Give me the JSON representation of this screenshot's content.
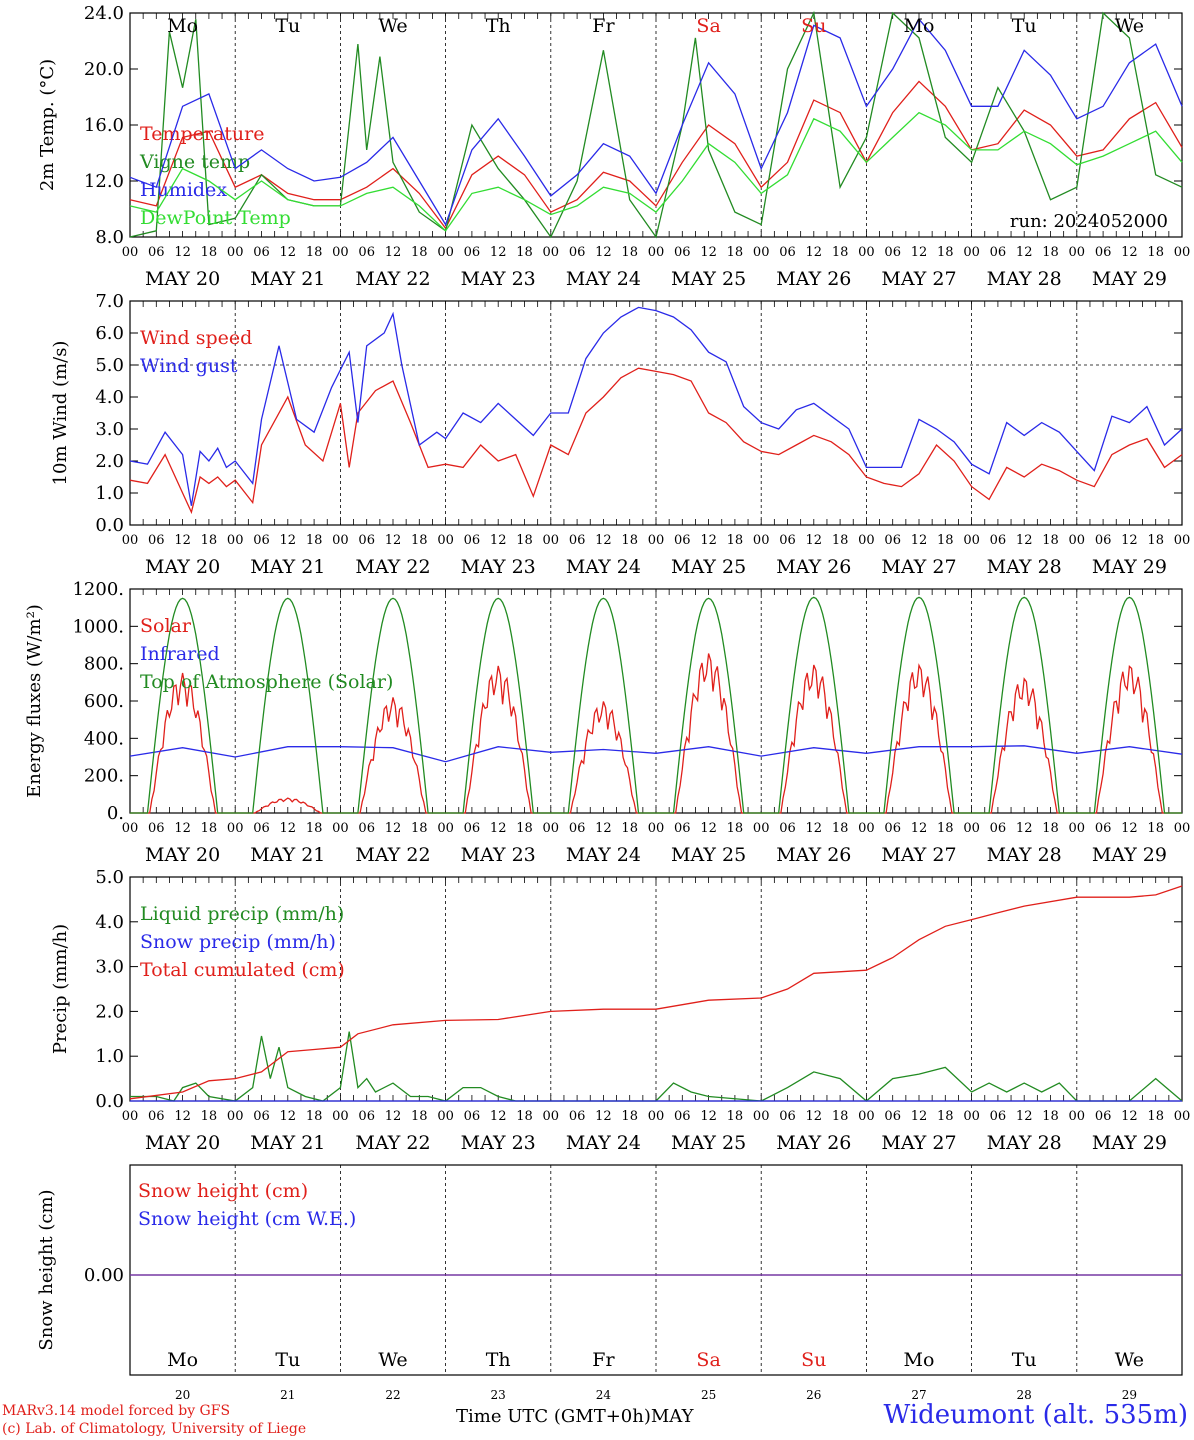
{
  "footer": {
    "model_line": "MARv3.14 model forced by GFS",
    "lab_line": "(c) Lab. of Climatology, University of Liege",
    "time_axis": "Time UTC (GMT+0h)MAY",
    "station": "Wideumont (alt. 535m)"
  },
  "hour_ticks": [
    "00",
    "06",
    "12",
    "18"
  ],
  "final_tick": "00",
  "date_labels": [
    "MAY 20",
    "MAY 21",
    "MAY 22",
    "MAY 23",
    "MAY 24",
    "MAY 25",
    "MAY 26",
    "MAY 27",
    "MAY 28",
    "MAY 29"
  ],
  "weekdays": [
    {
      "label": "Mo",
      "color": "#000000"
    },
    {
      "label": "Tu",
      "color": "#000000"
    },
    {
      "label": "We",
      "color": "#000000"
    },
    {
      "label": "Th",
      "color": "#000000"
    },
    {
      "label": "Fr",
      "color": "#000000"
    },
    {
      "label": "Sa",
      "color": "#e0201b"
    },
    {
      "label": "Su",
      "color": "#e0201b"
    },
    {
      "label": "Mo",
      "color": "#000000"
    },
    {
      "label": "Tu",
      "color": "#000000"
    },
    {
      "label": "We",
      "color": "#000000"
    }
  ],
  "day_numbers": [
    "20",
    "21",
    "22",
    "23",
    "24",
    "25",
    "26",
    "27",
    "28",
    "29"
  ],
  "colors": {
    "red": "#e0201b",
    "green": "#228b22",
    "blue": "#2a2ae8",
    "light_green": "#33dd33",
    "purple": "#7030a0"
  },
  "chart_data": [
    {
      "type": "line",
      "ylabel": "2m Temp. (°C)",
      "ylim": [
        8,
        26
      ],
      "yticks": [
        "8.0",
        "12.0",
        "16.0",
        "20.0",
        "24.0"
      ],
      "annotation": "run: 2024052000",
      "x_unit": "hours since 2024-05-20 00 UTC",
      "series": [
        {
          "name": "Temperature",
          "color": "#e0201b",
          "x": [
            0,
            6,
            12,
            18,
            24,
            30,
            36,
            42,
            48,
            54,
            60,
            66,
            72,
            78,
            84,
            90,
            96,
            102,
            108,
            114,
            120,
            126,
            132,
            138,
            144,
            150,
            156,
            162,
            168,
            174,
            180,
            186,
            192,
            198,
            204,
            210,
            216,
            222,
            228,
            234,
            240
          ],
          "y": [
            11.0,
            10.5,
            16.0,
            16.5,
            12.0,
            13.0,
            11.5,
            11.0,
            11.0,
            12.0,
            13.5,
            11.5,
            8.7,
            13.0,
            14.5,
            13.0,
            10.0,
            11.0,
            13.2,
            12.5,
            10.5,
            14.0,
            17.0,
            15.5,
            12.0,
            14.0,
            19.0,
            18.0,
            14.0,
            18.0,
            20.5,
            18.5,
            15.0,
            15.5,
            18.2,
            17.0,
            14.5,
            15.0,
            17.5,
            18.8,
            15.2
          ]
        },
        {
          "name": "Vigne temp",
          "color": "#228b22",
          "x": [
            0,
            6,
            9,
            12,
            15,
            18,
            24,
            30,
            36,
            42,
            48,
            52,
            54,
            57,
            60,
            66,
            72,
            78,
            84,
            90,
            96,
            102,
            108,
            114,
            120,
            126,
            129,
            132,
            138,
            144,
            150,
            156,
            162,
            168,
            174,
            180,
            186,
            192,
            198,
            204,
            210,
            216,
            222,
            228,
            234,
            240
          ],
          "y": [
            8.0,
            8.5,
            24.5,
            20.0,
            25.5,
            9.0,
            9.5,
            13.0,
            11.0,
            10.5,
            10.5,
            23.5,
            15.0,
            22.5,
            14.0,
            10.0,
            8.5,
            17.0,
            13.5,
            11.0,
            8.0,
            12.5,
            23.0,
            11.0,
            8.0,
            17.0,
            24.0,
            15.0,
            10.0,
            9.0,
            21.5,
            26.0,
            12.0,
            16.0,
            26.0,
            24.0,
            16.0,
            14.0,
            20.0,
            16.5,
            11.0,
            12.0,
            26.0,
            24.0,
            13.0,
            12.0
          ]
        },
        {
          "name": "Humidex",
          "color": "#2a2ae8",
          "x": [
            0,
            6,
            12,
            18,
            24,
            30,
            36,
            42,
            48,
            54,
            60,
            66,
            72,
            78,
            84,
            90,
            96,
            102,
            108,
            114,
            120,
            126,
            132,
            138,
            144,
            150,
            156,
            162,
            168,
            174,
            180,
            186,
            192,
            198,
            204,
            210,
            216,
            222,
            228,
            234,
            240
          ],
          "y": [
            12.8,
            12.0,
            18.5,
            19.5,
            13.5,
            15.0,
            13.5,
            12.5,
            12.8,
            14.0,
            16.0,
            12.5,
            9.0,
            15.0,
            17.5,
            14.5,
            11.3,
            13.0,
            15.5,
            14.5,
            11.5,
            17.0,
            22.0,
            19.5,
            13.5,
            18.0,
            25.0,
            24.0,
            18.5,
            21.5,
            25.5,
            23.0,
            18.5,
            18.5,
            23.0,
            21.0,
            17.5,
            18.5,
            22.0,
            23.5,
            18.5
          ]
        },
        {
          "name": "DewPoint Temp",
          "color": "#33dd33",
          "x": [
            0,
            6,
            12,
            18,
            24,
            30,
            36,
            42,
            48,
            54,
            60,
            66,
            72,
            78,
            84,
            90,
            96,
            102,
            108,
            114,
            120,
            126,
            132,
            138,
            144,
            150,
            156,
            162,
            168,
            174,
            180,
            186,
            192,
            198,
            204,
            210,
            216,
            222,
            228,
            234,
            240
          ],
          "y": [
            10.5,
            10.0,
            13.5,
            12.5,
            11.0,
            12.5,
            11.0,
            10.5,
            10.5,
            11.5,
            12.0,
            10.5,
            8.5,
            11.5,
            12.0,
            11.0,
            9.8,
            10.5,
            12.0,
            11.5,
            10.0,
            12.5,
            15.5,
            14.0,
            11.5,
            13.0,
            17.5,
            16.5,
            14.0,
            16.0,
            18.0,
            17.0,
            15.0,
            15.0,
            16.5,
            15.5,
            13.8,
            14.5,
            15.5,
            16.5,
            14.0
          ]
        }
      ]
    },
    {
      "type": "line",
      "ylabel": "10m Wind (m/s)",
      "ylim": [
        0,
        7
      ],
      "yticks": [
        "0.0",
        "1.0",
        "2.0",
        "3.0",
        "4.0",
        "5.0",
        "6.0",
        "7.0"
      ],
      "reference_line": 5.0,
      "series": [
        {
          "name": "Wind speed",
          "color": "#e0201b",
          "x": [
            0,
            4,
            8,
            12,
            14,
            16,
            18,
            20,
            22,
            24,
            28,
            30,
            36,
            40,
            44,
            48,
            50,
            52,
            56,
            60,
            64,
            68,
            72,
            76,
            80,
            84,
            88,
            92,
            96,
            100,
            104,
            108,
            112,
            116,
            120,
            124,
            128,
            132,
            136,
            140,
            144,
            148,
            152,
            156,
            160,
            164,
            168,
            172,
            176,
            180,
            184,
            188,
            192,
            196,
            200,
            204,
            208,
            212,
            216,
            220,
            224,
            228,
            232,
            236,
            240
          ],
          "y": [
            1.4,
            1.3,
            2.2,
            1.0,
            0.4,
            1.5,
            1.3,
            1.5,
            1.2,
            1.4,
            0.7,
            2.5,
            4.0,
            2.5,
            2.0,
            3.8,
            1.8,
            3.5,
            4.2,
            4.5,
            3.2,
            1.8,
            1.9,
            1.8,
            2.5,
            2.0,
            2.2,
            0.9,
            2.5,
            2.2,
            3.5,
            4.0,
            4.6,
            4.9,
            4.8,
            4.7,
            4.5,
            3.5,
            3.2,
            2.6,
            2.3,
            2.2,
            2.5,
            2.8,
            2.6,
            2.2,
            1.5,
            1.3,
            1.2,
            1.6,
            2.5,
            2.0,
            1.2,
            0.8,
            1.8,
            1.5,
            1.9,
            1.7,
            1.4,
            1.2,
            2.2,
            2.5,
            2.7,
            1.8,
            2.2
          ]
        },
        {
          "name": "Wind gust",
          "color": "#2a2ae8",
          "x": [
            0,
            4,
            8,
            12,
            14,
            16,
            18,
            20,
            22,
            24,
            28,
            30,
            34,
            38,
            42,
            46,
            50,
            52,
            54,
            58,
            60,
            62,
            66,
            70,
            72,
            76,
            80,
            84,
            88,
            92,
            96,
            100,
            104,
            108,
            112,
            116,
            120,
            124,
            128,
            132,
            136,
            140,
            144,
            148,
            152,
            156,
            160,
            164,
            168,
            172,
            176,
            180,
            184,
            188,
            192,
            196,
            200,
            204,
            208,
            212,
            216,
            220,
            224,
            228,
            232,
            236,
            240
          ],
          "y": [
            2.0,
            1.9,
            2.9,
            2.2,
            0.6,
            2.3,
            2.0,
            2.4,
            1.8,
            2.0,
            1.3,
            3.3,
            5.6,
            3.3,
            2.9,
            4.3,
            5.4,
            3.2,
            5.6,
            6.0,
            6.6,
            5.0,
            2.5,
            2.9,
            2.7,
            3.5,
            3.2,
            3.8,
            3.3,
            2.8,
            3.5,
            3.5,
            5.2,
            6.0,
            6.5,
            6.8,
            6.7,
            6.5,
            6.1,
            5.4,
            5.1,
            3.7,
            3.2,
            3.0,
            3.6,
            3.8,
            3.4,
            3.0,
            1.8,
            1.8,
            1.8,
            3.3,
            3.0,
            2.6,
            1.9,
            1.6,
            3.2,
            2.8,
            3.2,
            2.9,
            2.3,
            1.7,
            3.4,
            3.2,
            3.7,
            2.5,
            3.0
          ]
        }
      ]
    },
    {
      "type": "line",
      "ylabel": "Energy fluxes (W/m²)",
      "ylim": [
        0,
        1200
      ],
      "yticks": [
        "0.",
        "200.",
        "400.",
        "600.",
        "800.",
        "1000.",
        "1200."
      ],
      "series": [
        {
          "name": "Solar",
          "color": "#e0201b",
          "daily_peak": [
            750,
            80,
            620,
            790,
            600,
            860,
            800,
            800,
            730,
            800
          ]
        },
        {
          "name": "Infrared",
          "color": "#2a2ae8",
          "x": [
            0,
            12,
            24,
            36,
            48,
            60,
            72,
            84,
            96,
            108,
            120,
            132,
            144,
            156,
            168,
            180,
            192,
            204,
            216,
            228,
            240
          ],
          "y": [
            305,
            350,
            300,
            355,
            355,
            350,
            275,
            355,
            325,
            340,
            320,
            355,
            305,
            350,
            320,
            355,
            355,
            360,
            320,
            355,
            315
          ]
        },
        {
          "name": "Top of Atmosphere (Solar)",
          "color": "#228b22",
          "daily_peak": [
            1150,
            1150,
            1150,
            1150,
            1150,
            1150,
            1155,
            1155,
            1155,
            1155
          ]
        }
      ]
    },
    {
      "type": "line",
      "ylabel": "Precip (mm/h)",
      "ylim": [
        0,
        5
      ],
      "yticks": [
        "0.0",
        "1.0",
        "2.0",
        "3.0",
        "4.0",
        "5.0"
      ],
      "series": [
        {
          "name": "Liquid precip (mm/h)",
          "color": "#228b22",
          "x": [
            0,
            6,
            10,
            12,
            15,
            18,
            24,
            28,
            30,
            32,
            34,
            36,
            40,
            44,
            48,
            50,
            52,
            54,
            56,
            60,
            64,
            68,
            72,
            76,
            80,
            84,
            88,
            92,
            96,
            120,
            124,
            128,
            132,
            144,
            150,
            156,
            162,
            168,
            174,
            180,
            186,
            192,
            196,
            200,
            204,
            208,
            212,
            216,
            220,
            228,
            234,
            240
          ],
          "y": [
            0.1,
            0.1,
            0.0,
            0.3,
            0.4,
            0.1,
            0.0,
            0.3,
            1.45,
            0.5,
            1.2,
            0.3,
            0.1,
            0.0,
            0.3,
            1.55,
            0.3,
            0.5,
            0.2,
            0.4,
            0.1,
            0.1,
            0.0,
            0.3,
            0.3,
            0.1,
            0.0,
            0.0,
            0.0,
            0.0,
            0.4,
            0.2,
            0.1,
            0.0,
            0.3,
            0.65,
            0.5,
            0.0,
            0.5,
            0.6,
            0.75,
            0.2,
            0.4,
            0.2,
            0.4,
            0.2,
            0.4,
            0.0,
            0.0,
            0.0,
            0.5,
            0.0
          ]
        },
        {
          "name": "Snow precip (mm/h)",
          "color": "#2a2ae8",
          "x": [
            0,
            240
          ],
          "y": [
            0,
            0
          ]
        },
        {
          "name": "Total cumulated (cm)",
          "color": "#e0201b",
          "x": [
            0,
            12,
            18,
            24,
            30,
            36,
            42,
            48,
            52,
            60,
            72,
            84,
            96,
            108,
            120,
            126,
            132,
            144,
            150,
            156,
            168,
            174,
            180,
            186,
            192,
            198,
            204,
            216,
            228,
            234,
            240
          ],
          "y": [
            0.05,
            0.2,
            0.45,
            0.5,
            0.65,
            1.1,
            1.15,
            1.2,
            1.5,
            1.7,
            1.8,
            1.82,
            2.0,
            2.05,
            2.05,
            2.15,
            2.25,
            2.3,
            2.5,
            2.85,
            2.92,
            3.2,
            3.6,
            3.9,
            4.05,
            4.2,
            4.35,
            4.55,
            4.55,
            4.6,
            4.8
          ]
        }
      ]
    },
    {
      "type": "line",
      "ylabel": "Snow height (cm)",
      "yticks": [
        "0.00"
      ],
      "series": [
        {
          "name": "Snow height (cm)",
          "color": "#e0201b",
          "x": [
            0,
            240
          ],
          "y": [
            0,
            0
          ]
        },
        {
          "name": "Snow height (cm W.E.)",
          "color": "#2a2ae8",
          "x": [
            0,
            240
          ],
          "y": [
            0,
            0
          ]
        }
      ]
    }
  ]
}
